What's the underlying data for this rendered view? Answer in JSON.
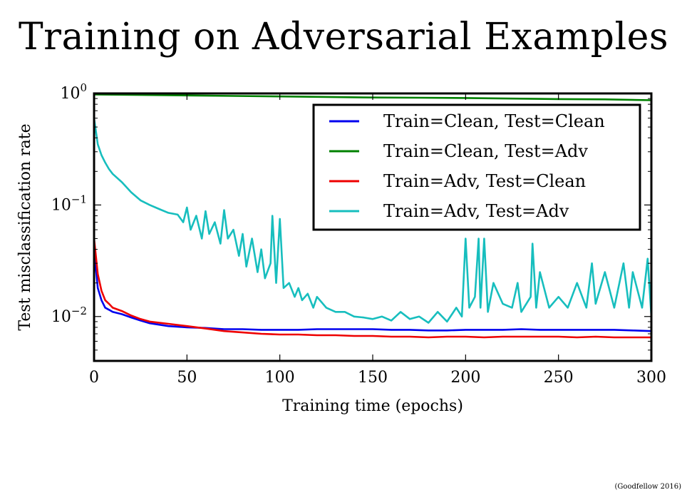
{
  "slide": {
    "title": "Training on Adversarial Examples",
    "credit": "(Goodfellow 2016)"
  },
  "chart_data": {
    "type": "line",
    "xlabel": "Training time (epochs)",
    "ylabel": "Test misclassification rate",
    "xlim": [
      0,
      300
    ],
    "ylim": [
      0.004,
      1.0
    ],
    "yscale": "log",
    "xticks": [
      0,
      50,
      100,
      150,
      200,
      250,
      300
    ],
    "xtick_labels": [
      "0",
      "50",
      "100",
      "150",
      "200",
      "250",
      "300"
    ],
    "yticks": [
      1,
      0.1,
      0.01
    ],
    "ytick_base": [
      "10",
      "10",
      "10"
    ],
    "ytick_exp": [
      "0",
      "−1",
      "−2"
    ],
    "legend_position": "top-right",
    "grid": false,
    "series": [
      {
        "name": "Train=Clean, Test=Clean",
        "color": "#0000ee",
        "x": [
          0,
          2,
          4,
          6,
          8,
          10,
          15,
          20,
          25,
          30,
          40,
          50,
          60,
          70,
          80,
          90,
          100,
          110,
          120,
          130,
          140,
          150,
          160,
          170,
          180,
          190,
          200,
          210,
          220,
          230,
          240,
          250,
          260,
          270,
          280,
          290,
          300
        ],
        "y": [
          0.04,
          0.018,
          0.014,
          0.012,
          0.0115,
          0.011,
          0.0105,
          0.0098,
          0.0092,
          0.0087,
          0.0082,
          0.008,
          0.0079,
          0.0077,
          0.0077,
          0.0076,
          0.0076,
          0.0076,
          0.0077,
          0.0077,
          0.0077,
          0.0077,
          0.0076,
          0.0076,
          0.0075,
          0.0075,
          0.0076,
          0.0076,
          0.0076,
          0.0077,
          0.0076,
          0.0076,
          0.0076,
          0.0076,
          0.0076,
          0.0075,
          0.0074
        ]
      },
      {
        "name": "Train=Clean, Test=Adv",
        "color": "#008000",
        "x": [
          0,
          25,
          50,
          75,
          100,
          125,
          150,
          175,
          200,
          225,
          250,
          275,
          300
        ],
        "y": [
          0.98,
          0.97,
          0.96,
          0.95,
          0.94,
          0.93,
          0.92,
          0.915,
          0.91,
          0.9,
          0.89,
          0.885,
          0.87
        ]
      },
      {
        "name": "Train=Adv, Test=Clean",
        "color": "#ee0000",
        "x": [
          0,
          2,
          4,
          6,
          8,
          10,
          15,
          20,
          25,
          30,
          40,
          50,
          60,
          70,
          80,
          90,
          100,
          110,
          120,
          130,
          140,
          150,
          160,
          170,
          180,
          190,
          200,
          210,
          220,
          230,
          240,
          250,
          260,
          270,
          280,
          290,
          300
        ],
        "y": [
          0.05,
          0.024,
          0.017,
          0.014,
          0.013,
          0.012,
          0.0112,
          0.0102,
          0.0095,
          0.009,
          0.0086,
          0.0082,
          0.0078,
          0.0074,
          0.0072,
          0.007,
          0.0069,
          0.0069,
          0.0068,
          0.0068,
          0.0067,
          0.0067,
          0.0066,
          0.0066,
          0.0065,
          0.0066,
          0.0066,
          0.0065,
          0.0066,
          0.0066,
          0.0066,
          0.0066,
          0.0065,
          0.0066,
          0.0065,
          0.0065,
          0.0065
        ]
      },
      {
        "name": "Train=Adv, Test=Adv",
        "color": "#17bebe",
        "x": [
          0,
          2,
          4,
          6,
          8,
          10,
          15,
          20,
          25,
          30,
          35,
          40,
          45,
          48,
          50,
          52,
          55,
          58,
          60,
          62,
          65,
          68,
          70,
          72,
          75,
          78,
          80,
          82,
          85,
          88,
          90,
          92,
          95,
          96,
          98,
          100,
          102,
          105,
          108,
          110,
          112,
          115,
          118,
          120,
          125,
          130,
          135,
          140,
          145,
          150,
          155,
          160,
          165,
          170,
          175,
          180,
          185,
          190,
          195,
          198,
          200,
          202,
          205,
          207,
          208,
          210,
          212,
          215,
          220,
          225,
          228,
          230,
          235,
          236,
          238,
          240,
          245,
          250,
          255,
          260,
          265,
          268,
          270,
          275,
          280,
          285,
          288,
          290,
          295,
          298,
          300
        ],
        "y": [
          0.6,
          0.35,
          0.28,
          0.24,
          0.21,
          0.19,
          0.16,
          0.13,
          0.11,
          0.1,
          0.092,
          0.085,
          0.082,
          0.07,
          0.095,
          0.06,
          0.08,
          0.05,
          0.088,
          0.055,
          0.07,
          0.045,
          0.09,
          0.05,
          0.06,
          0.035,
          0.055,
          0.028,
          0.05,
          0.025,
          0.04,
          0.022,
          0.03,
          0.08,
          0.02,
          0.075,
          0.018,
          0.02,
          0.015,
          0.018,
          0.014,
          0.016,
          0.012,
          0.015,
          0.012,
          0.011,
          0.011,
          0.01,
          0.0098,
          0.0095,
          0.01,
          0.0092,
          0.011,
          0.0095,
          0.01,
          0.0088,
          0.011,
          0.009,
          0.012,
          0.01,
          0.05,
          0.012,
          0.015,
          0.05,
          0.012,
          0.05,
          0.011,
          0.02,
          0.013,
          0.012,
          0.02,
          0.011,
          0.015,
          0.045,
          0.012,
          0.025,
          0.012,
          0.015,
          0.012,
          0.02,
          0.012,
          0.03,
          0.013,
          0.025,
          0.012,
          0.03,
          0.012,
          0.025,
          0.012,
          0.033,
          0.01
        ]
      }
    ]
  }
}
